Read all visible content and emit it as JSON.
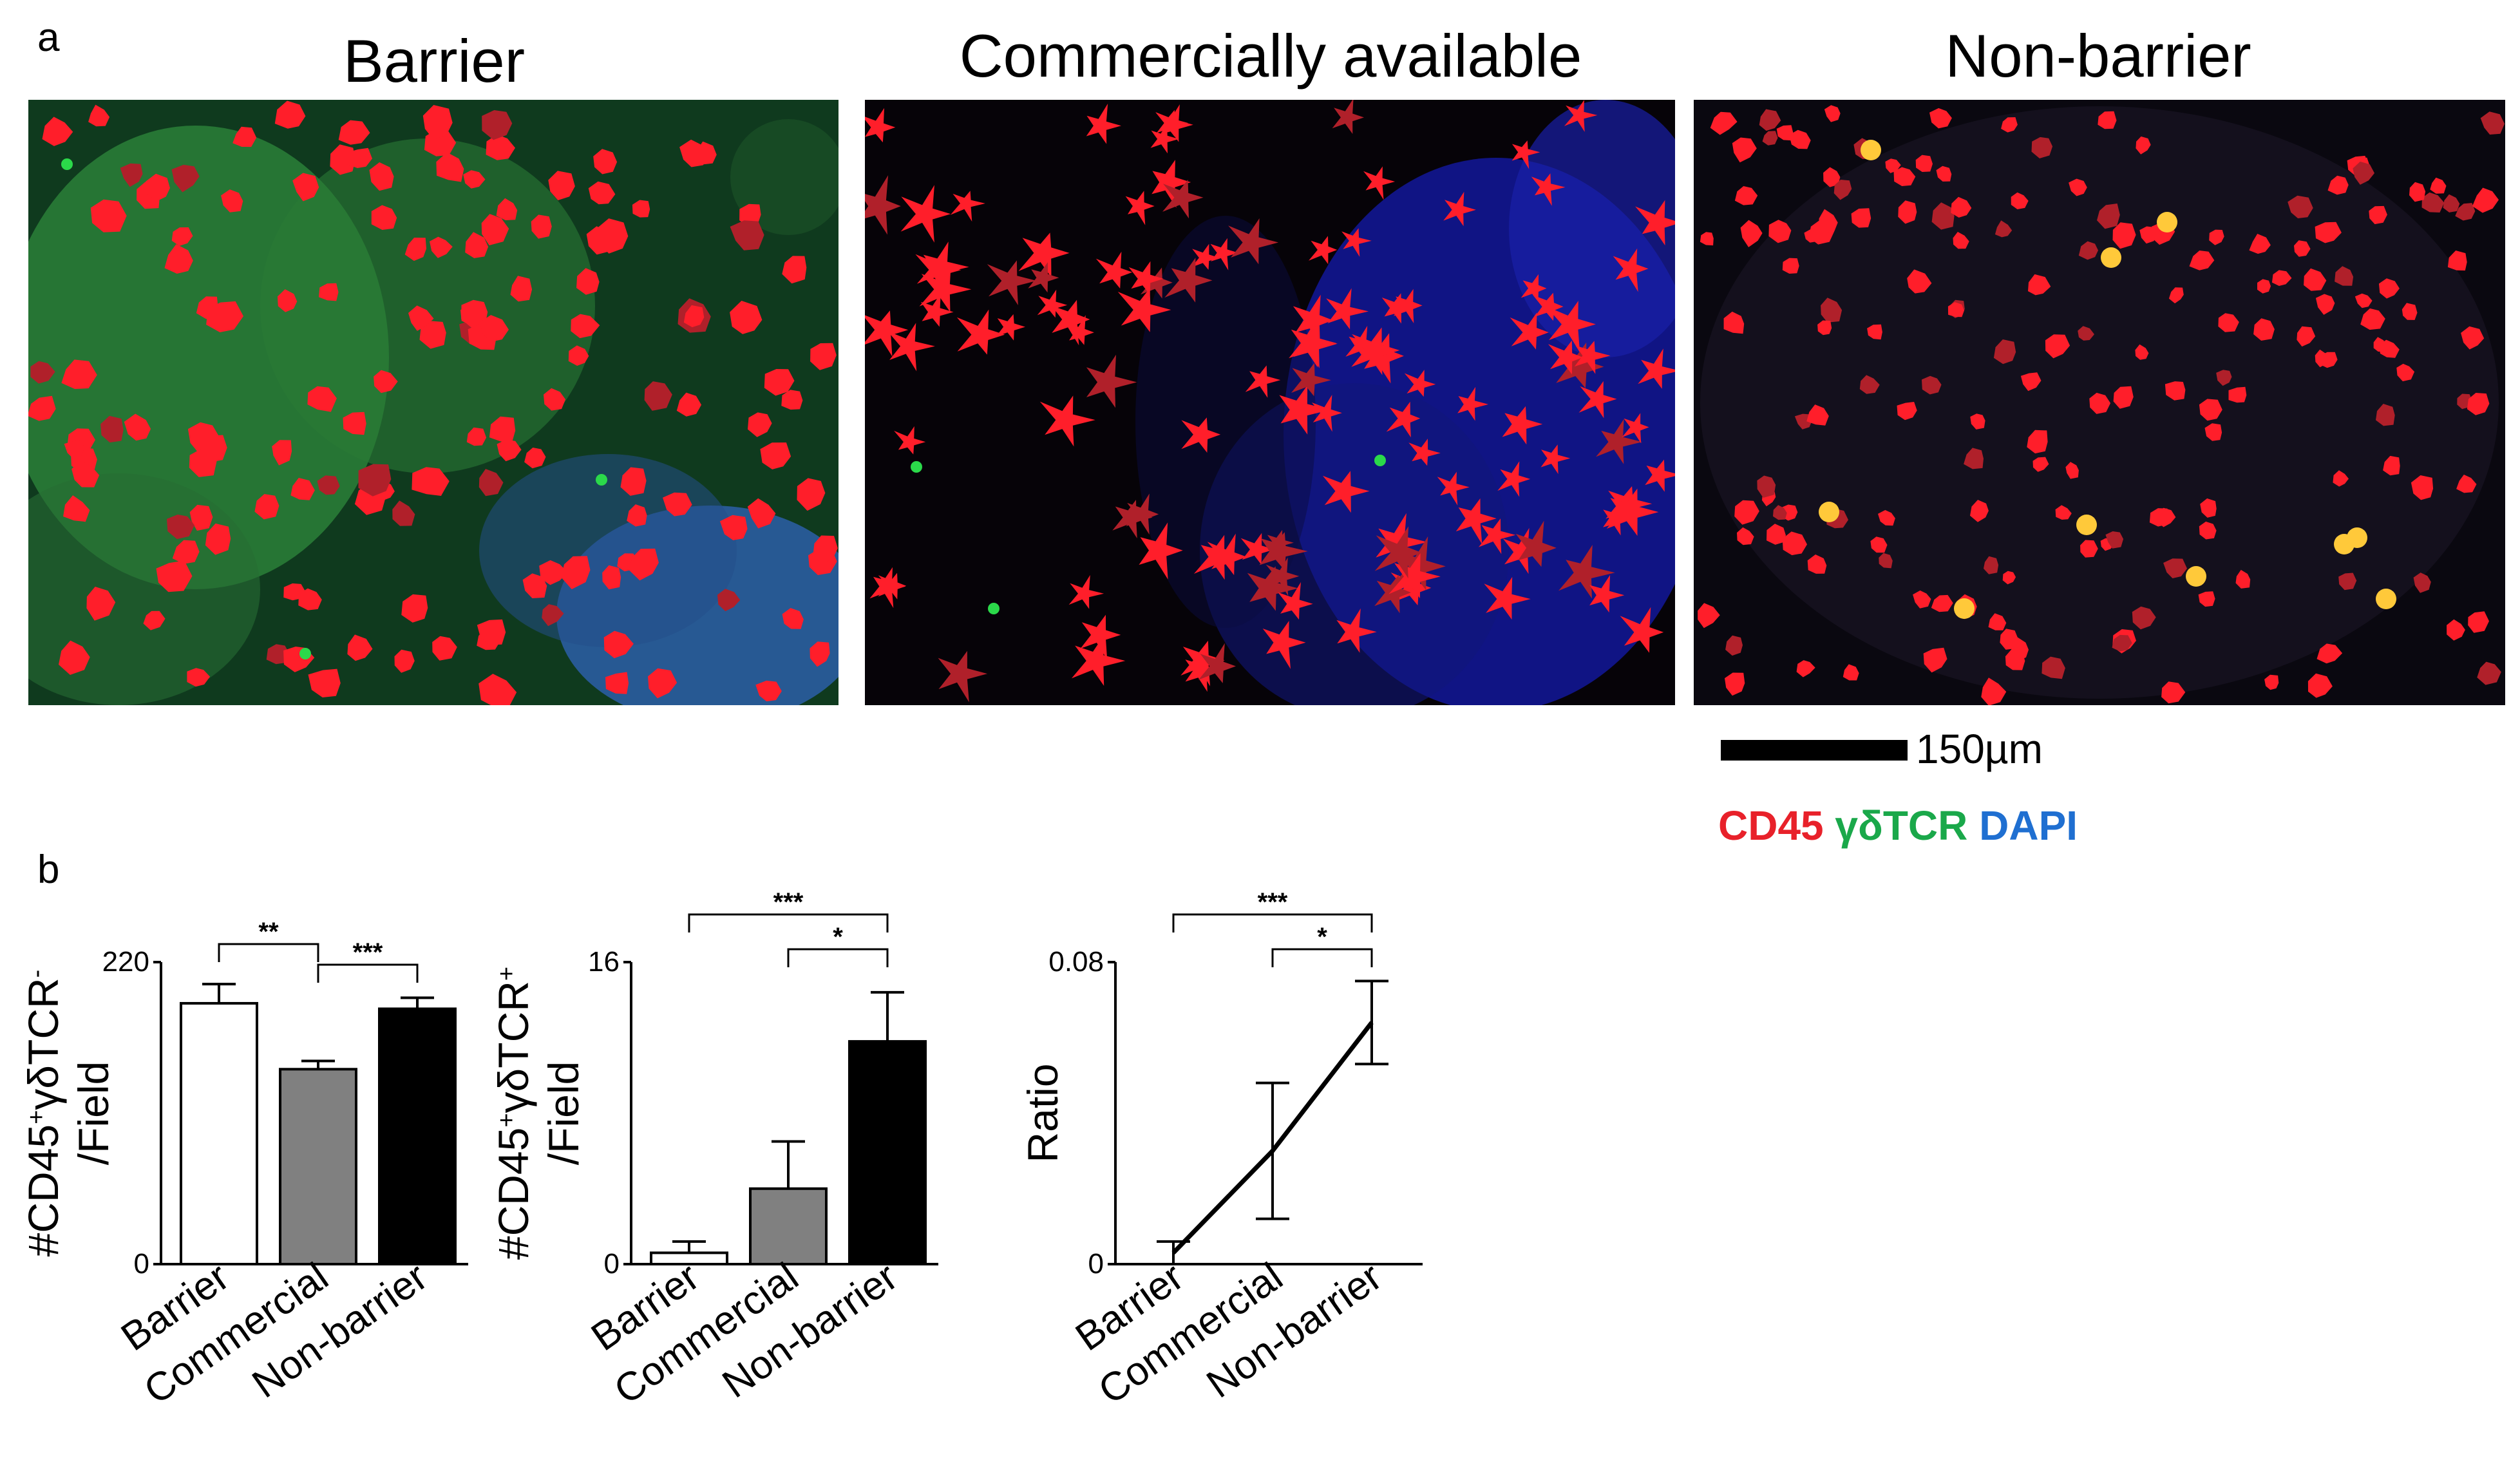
{
  "panel_a": {
    "letter": "a",
    "images": [
      {
        "title": "Barrier"
      },
      {
        "title": "Commercially available"
      },
      {
        "title": "Non-barrier"
      }
    ],
    "scale_bar_label": "150µm",
    "stain_legend": [
      {
        "label": "CD45",
        "color": "#e8212a"
      },
      {
        "label": "γδTCR",
        "color": "#1aa84a"
      },
      {
        "label": "DAPI",
        "color": "#1f6fd1"
      }
    ]
  },
  "panel_b": {
    "letter": "b"
  },
  "chart_data": [
    {
      "type": "bar",
      "categories": [
        "Barrier",
        "Commercial",
        "Non-barrier"
      ],
      "values": [
        190,
        142,
        186
      ],
      "errors": [
        14,
        6,
        8
      ],
      "bar_colors": [
        "#ffffff",
        "#808080",
        "#000000"
      ],
      "ylabel_main": "#CD45",
      "ylabel_sup1": "+",
      "ylabel_mid": "γδTCR",
      "ylabel_sup2": "-",
      "ylabel_line2": "/Field",
      "ylim": [
        0,
        220
      ],
      "yticks": [
        "0",
        "220"
      ],
      "significance": [
        {
          "from": 0,
          "to": 1,
          "label": "**"
        },
        {
          "from": 1,
          "to": 2,
          "label": "***"
        }
      ]
    },
    {
      "type": "bar",
      "categories": [
        "Barrier",
        "Commercial",
        "Non-barrier"
      ],
      "values": [
        0.6,
        4.0,
        11.8
      ],
      "errors": [
        0.6,
        2.5,
        2.6
      ],
      "bar_colors": [
        "#ffffff",
        "#808080",
        "#000000"
      ],
      "ylabel_main": "#CD45",
      "ylabel_sup1": "+",
      "ylabel_mid": "γδTCR",
      "ylabel_sup2": "+",
      "ylabel_line2": "/Field",
      "ylim": [
        0,
        16
      ],
      "yticks": [
        "0",
        "16"
      ],
      "significance": [
        {
          "from": 0,
          "to": 2,
          "label": "***"
        },
        {
          "from": 1,
          "to": 2,
          "label": "*"
        }
      ]
    },
    {
      "type": "line",
      "categories": [
        "Barrier",
        "Commercial",
        "Non-barrier"
      ],
      "values": [
        0.003,
        0.03,
        0.064
      ],
      "errors": [
        0.003,
        0.018,
        0.011
      ],
      "ylabel": "Ratio",
      "ylim": [
        0,
        0.08
      ],
      "yticks": [
        "0",
        "0.08"
      ],
      "significance": [
        {
          "from": 0,
          "to": 2,
          "label": "***"
        },
        {
          "from": 1,
          "to": 2,
          "label": "*"
        }
      ]
    }
  ]
}
